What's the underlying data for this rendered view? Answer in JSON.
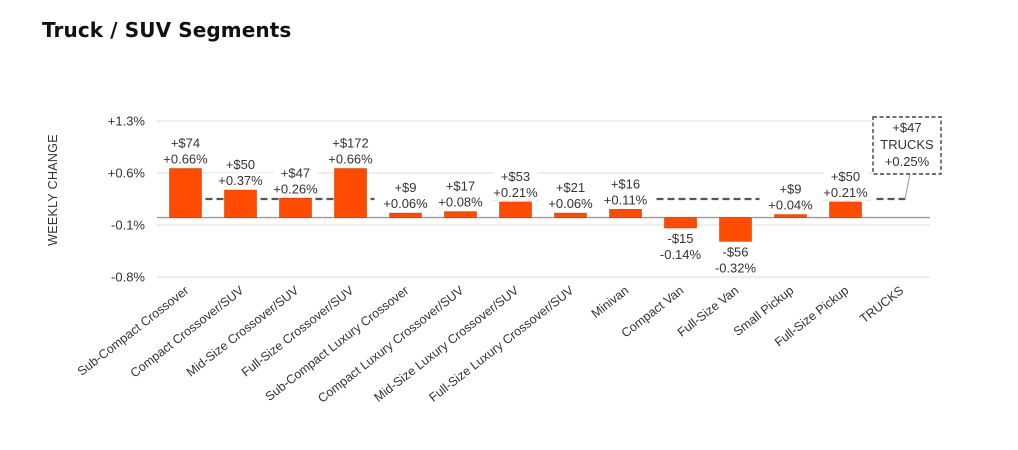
{
  "page_title": "Truck / SUV Segments",
  "colors": {
    "bar": "#ff4b00",
    "bar_edge": "#d84000",
    "grid": "#e3e3e3",
    "axis": "#999999",
    "dash": "#555555",
    "text": "#333333"
  },
  "chart_data": {
    "type": "bar",
    "title": "Truck / SUV Segments",
    "xlabel": "",
    "ylabel": "WEEKLY CHANGE",
    "ylim": [
      -0.8,
      1.3
    ],
    "yticks": [
      1.3,
      0.6,
      -0.1,
      -0.8
    ],
    "ytick_labels": [
      "+1.3%",
      "+0.6%",
      "-0.1%",
      "-0.8%"
    ],
    "grid": true,
    "categories": [
      "Sub-Compact Crossover",
      "Compact Crossover/SUV",
      "Mid-Size Crossover/SUV",
      "Full-Size Crossover/SUV",
      "Sub-Compact Luxury Crossover",
      "Compact Luxury Crossover/SUV",
      "Mid-Size Luxury Crossover/SUV",
      "Full-Size Luxury Crossover/SUV",
      "Minivan",
      "Compact Van",
      "Full-Size Van",
      "Small Pickup",
      "Full-Size Pickup",
      "TRUCKS"
    ],
    "values": [
      0.66,
      0.37,
      0.26,
      0.66,
      0.06,
      0.08,
      0.21,
      0.06,
      0.11,
      -0.14,
      -0.32,
      0.04,
      0.21,
      null
    ],
    "dollar_labels": [
      "+$74",
      "+$50",
      "+$47",
      "+$172",
      "+$9",
      "+$17",
      "+$53",
      "+$21",
      "+$16",
      "-$15",
      "-$56",
      "+$9",
      "+$50",
      null
    ],
    "percent_labels": [
      "+0.66%",
      "+0.37%",
      "+0.26%",
      "+0.66%",
      "+0.06%",
      "+0.08%",
      "+0.21%",
      "+0.06%",
      "+0.11%",
      "-0.14%",
      "-0.32%",
      "+0.04%",
      "+0.21%",
      null
    ],
    "reference_line": {
      "value": 0.25,
      "style": "dashed",
      "annotation": {
        "dollar": "+$47",
        "label": "TRUCKS",
        "percent": "+0.25%"
      }
    }
  }
}
